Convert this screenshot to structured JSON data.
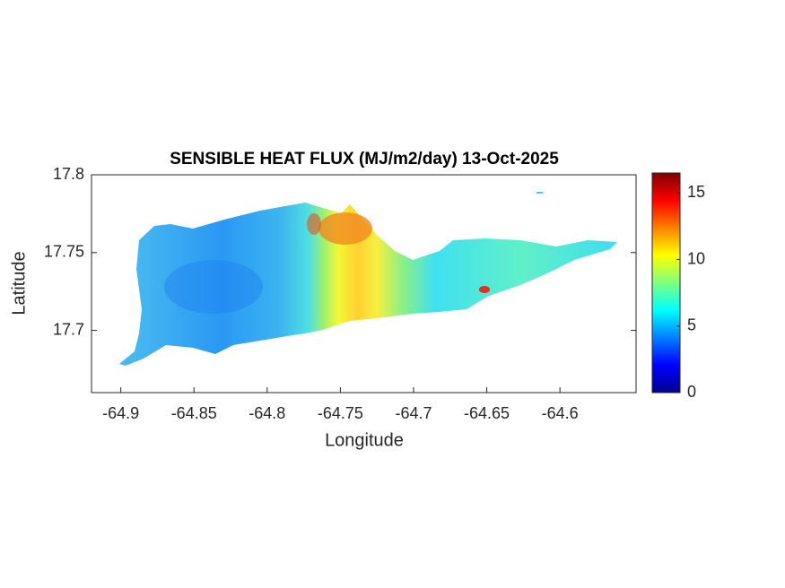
{
  "chart_data": {
    "type": "map",
    "title": "SENSIBLE HEAT FLUX (MJ/m2/day) 13-Oct-2025",
    "xlabel": "Longitude",
    "ylabel": "Latitude",
    "xlim": [
      -64.92,
      -64.548
    ],
    "xticks": [
      -64.9,
      -64.85,
      -64.8,
      -64.75,
      -64.7,
      -64.65,
      -64.6
    ],
    "ylim": [
      17.66,
      17.8
    ],
    "yticks": [
      17.7,
      17.75,
      17.8
    ],
    "colorbar": {
      "lim": [
        0,
        16.5
      ],
      "ticks": [
        0,
        5,
        10,
        15
      ],
      "colormap": "jet"
    }
  }
}
